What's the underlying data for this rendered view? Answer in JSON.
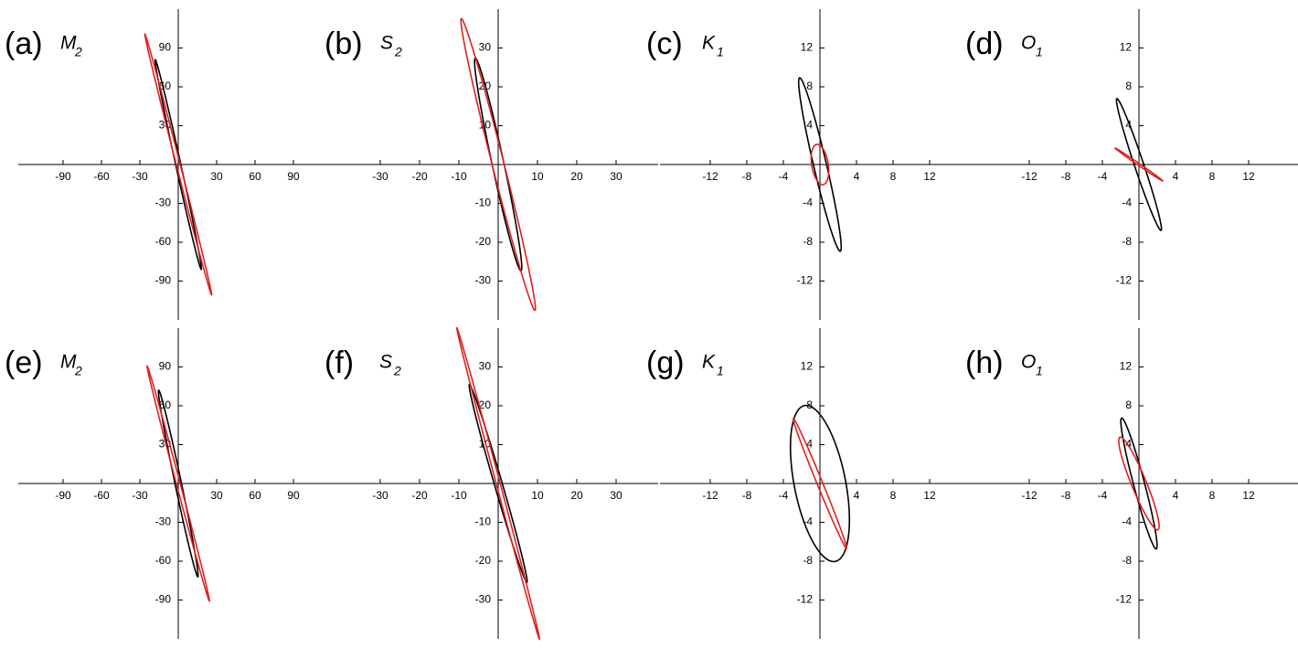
{
  "chart_data": [
    {
      "type": "ellipse",
      "panel": "(a)",
      "constituent": "M",
      "subscript": "2",
      "xlim": [
        -125,
        125
      ],
      "ylim": [
        -120,
        120
      ],
      "xticks": [
        -90,
        -60,
        -30,
        30,
        60,
        90
      ],
      "yticks": [
        -90,
        -60,
        -30,
        30,
        60,
        90
      ],
      "ellipses": [
        {
          "color": "#000000",
          "major": 83,
          "minor": 2,
          "inclination": 102.5
        },
        {
          "color": "#e02020",
          "major": 104,
          "minor": 1.5,
          "inclination": 104.5
        }
      ]
    },
    {
      "type": "ellipse",
      "panel": "(b)",
      "constituent": "S",
      "subscript": "2",
      "xlim": [
        -40.7,
        40.7
      ],
      "ylim": [
        -40,
        40
      ],
      "xticks": [
        -30,
        -20,
        -10,
        10,
        20,
        30
      ],
      "yticks": [
        -30,
        -20,
        -10,
        10,
        20,
        30
      ],
      "ellipses": [
        {
          "color": "#000000",
          "major": 28,
          "minor": 1.5,
          "inclination": 102
        },
        {
          "color": "#e02020",
          "major": 38.7,
          "minor": 1.5,
          "inclination": 104
        }
      ]
    },
    {
      "type": "ellipse",
      "panel": "(c)",
      "constituent": "K",
      "subscript": "1",
      "xlim": [
        -17.5,
        17.5
      ],
      "ylim": [
        -16,
        16
      ],
      "xticks": [
        -12,
        -8,
        -4,
        4,
        8,
        12
      ],
      "yticks": [
        -12,
        -8,
        -4,
        4,
        8,
        12
      ],
      "ellipses": [
        {
          "color": "#000000",
          "major": 9.2,
          "minor": 0.7,
          "inclination": 104
        },
        {
          "color": "#e02020",
          "major": 2.1,
          "minor": 0.9,
          "inclination": 100
        }
      ]
    },
    {
      "type": "ellipse",
      "panel": "(d)",
      "constituent": "O",
      "subscript": "1",
      "xlim": [
        -17.5,
        17.5
      ],
      "ylim": [
        -16,
        16
      ],
      "xticks": [
        -12,
        -8,
        -4,
        4,
        8,
        12
      ],
      "yticks": [
        -12,
        -8,
        -4,
        4,
        8,
        12
      ],
      "ellipses": [
        {
          "color": "#000000",
          "major": 7.2,
          "minor": 0.5,
          "inclination": 109.6
        },
        {
          "color": "#e02020",
          "major": 3.1,
          "minor": 0.1,
          "inclination": 147
        }
      ]
    },
    {
      "type": "ellipse",
      "panel": "(e)",
      "constituent": "M",
      "subscript": "2",
      "xlim": [
        -125,
        125
      ],
      "ylim": [
        -120,
        120
      ],
      "xticks": [
        -90,
        -60,
        -30,
        30,
        60,
        90
      ],
      "yticks": [
        -90,
        -60,
        -30,
        30,
        60,
        90
      ],
      "ellipses": [
        {
          "color": "#000000",
          "major": 73.7,
          "minor": 2.5,
          "inclination": 102
        },
        {
          "color": "#e02020",
          "major": 94,
          "minor": 1.5,
          "inclination": 105
        }
      ]
    },
    {
      "type": "ellipse",
      "panel": "(f)",
      "constituent": "S",
      "subscript": "2",
      "xlim": [
        -40.7,
        40.7
      ],
      "ylim": [
        -40,
        40
      ],
      "xticks": [
        -30,
        -20,
        -10,
        10,
        20,
        30
      ],
      "yticks": [
        -30,
        -20,
        -10,
        10,
        20,
        30
      ],
      "ellipses": [
        {
          "color": "#000000",
          "major": 26.5,
          "minor": 1,
          "inclination": 106
        },
        {
          "color": "#e02020",
          "major": 41.4,
          "minor": 0.5,
          "inclination": 104.7
        }
      ]
    },
    {
      "type": "ellipse",
      "panel": "(g)",
      "constituent": "K",
      "subscript": "1",
      "xlim": [
        -17.5,
        17.5
      ],
      "ylim": [
        -16,
        16
      ],
      "xticks": [
        -12,
        -8,
        -4,
        4,
        8,
        12
      ],
      "yticks": [
        -12,
        -8,
        -4,
        4,
        8,
        12
      ],
      "ellipses": [
        {
          "color": "#000000",
          "major": 8.2,
          "minor": 2.8,
          "inclination": 102
        },
        {
          "color": "#e02020",
          "major": 7.3,
          "minor": 0.3,
          "inclination": 113.5
        }
      ]
    },
    {
      "type": "ellipse",
      "panel": "(h)",
      "constituent": "O",
      "subscript": "1",
      "xlim": [
        -17.5,
        17.5
      ],
      "ylim": [
        -16,
        16
      ],
      "xticks": [
        -12,
        -8,
        -4,
        4,
        8,
        12
      ],
      "yticks": [
        -12,
        -8,
        -4,
        4,
        8,
        12
      ],
      "ellipses": [
        {
          "color": "#000000",
          "major": 7.0,
          "minor": 0.6,
          "inclination": 105.7
        },
        {
          "color": "#e02020",
          "major": 5.2,
          "minor": 0.8,
          "inclination": 113.6
        }
      ]
    }
  ]
}
